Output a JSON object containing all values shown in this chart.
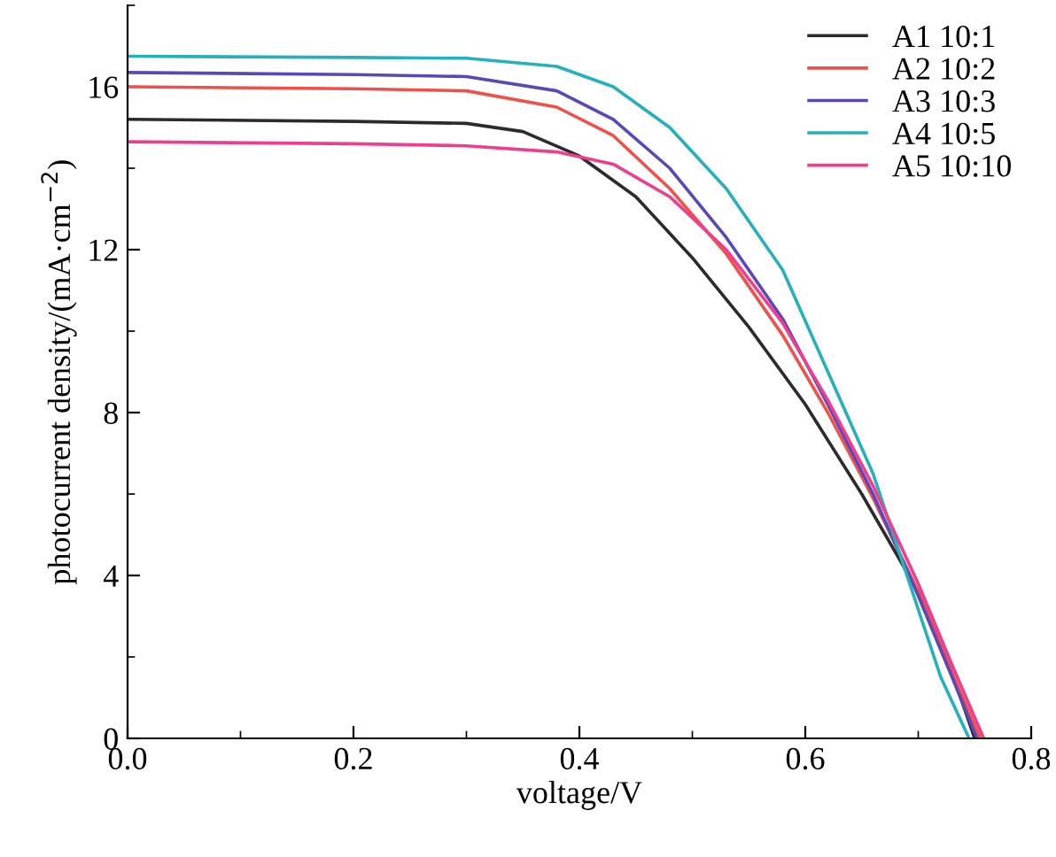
{
  "chart_data": {
    "type": "line",
    "xlabel": "voltage/V",
    "ylabel": "photocurrent density/(mA·cm$^{−2}$)",
    "xlim": [
      0,
      0.8
    ],
    "xticks": [
      {
        "value": 0,
        "label": "0.0"
      },
      0.2,
      0.4,
      0.6,
      0.8
    ],
    "ylim": [
      0,
      18
    ],
    "yticks": [
      0,
      4,
      8,
      12,
      16
    ],
    "grid": false,
    "legend": "top right",
    "marker": "none",
    "line_style": "solid",
    "series": [
      {
        "name": "A1 10:1",
        "color": "#2b2b2b",
        "x": [
          0,
          0.2,
          0.3,
          0.35,
          0.4,
          0.45,
          0.5,
          0.55,
          0.6,
          0.65,
          0.7,
          0.73,
          0.75
        ],
        "values": [
          15.2,
          15.15,
          15.1,
          14.9,
          14.3,
          13.3,
          11.8,
          10.1,
          8.2,
          6.0,
          3.6,
          1.6,
          0
        ]
      },
      {
        "name": "A2 10:2",
        "color": "#f0504a",
        "x": [
          0,
          0.2,
          0.3,
          0.38,
          0.43,
          0.48,
          0.53,
          0.58,
          0.62,
          0.66,
          0.7,
          0.73,
          0.755
        ],
        "values": [
          16.0,
          15.95,
          15.9,
          15.5,
          14.8,
          13.5,
          11.9,
          9.9,
          8.0,
          5.9,
          3.6,
          1.6,
          0
        ]
      },
      {
        "name": "A3 10:3",
        "color": "#5b48b8",
        "x": [
          0,
          0.2,
          0.3,
          0.38,
          0.43,
          0.48,
          0.53,
          0.58,
          0.62,
          0.66,
          0.7,
          0.73,
          0.752
        ],
        "values": [
          16.35,
          16.3,
          16.25,
          15.9,
          15.2,
          14.0,
          12.3,
          10.3,
          8.2,
          6.0,
          3.5,
          1.5,
          0
        ]
      },
      {
        "name": "A4 10:5",
        "color": "#26b0bc",
        "x": [
          0,
          0.2,
          0.3,
          0.38,
          0.43,
          0.48,
          0.53,
          0.58,
          0.62,
          0.66,
          0.69,
          0.72,
          0.745
        ],
        "values": [
          16.75,
          16.72,
          16.7,
          16.5,
          16.0,
          15.0,
          13.5,
          11.5,
          9.0,
          6.5,
          4.0,
          1.5,
          0
        ]
      },
      {
        "name": "A5 10:10",
        "color": "#ee3f8f",
        "x": [
          0,
          0.2,
          0.3,
          0.38,
          0.43,
          0.48,
          0.53,
          0.58,
          0.62,
          0.66,
          0.7,
          0.73,
          0.758
        ],
        "values": [
          14.65,
          14.6,
          14.55,
          14.4,
          14.1,
          13.3,
          12.0,
          10.2,
          8.3,
          6.2,
          3.8,
          1.8,
          0
        ]
      }
    ]
  }
}
